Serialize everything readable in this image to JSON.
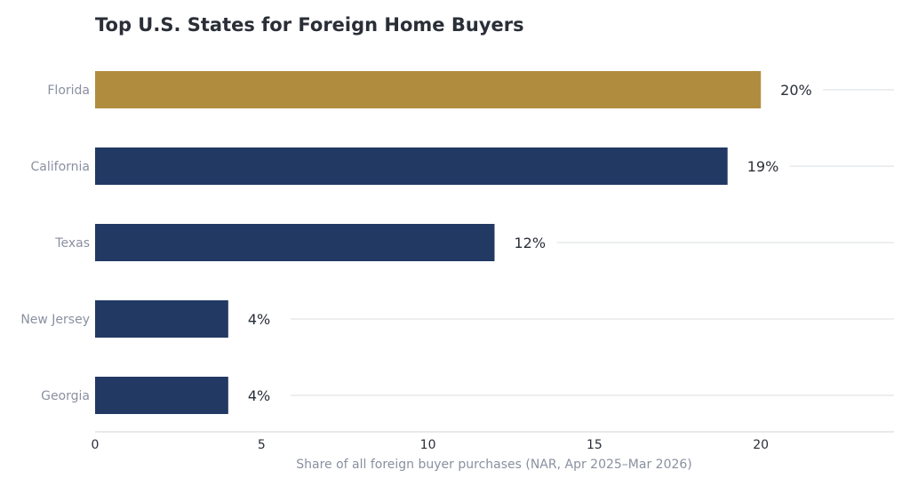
{
  "chart_data": {
    "type": "bar",
    "orientation": "horizontal",
    "title": "Top U.S. States for Foreign Home Buyers",
    "xlabel": "Share of all foreign buyer purchases (NAR, Apr 2025–Mar 2026)",
    "ylabel": "",
    "categories": [
      "Florida",
      "California",
      "Texas",
      "New Jersey",
      "Georgia"
    ],
    "values": [
      20,
      19,
      12,
      4,
      4
    ],
    "value_labels": [
      "20%",
      "19%",
      "12%",
      "4%",
      "4%"
    ],
    "xlim": [
      0,
      24
    ],
    "xticks": [
      0,
      5,
      10,
      15,
      20
    ],
    "xtick_labels": [
      "0",
      "5",
      "10",
      "15",
      "20"
    ],
    "grid": "horizontal lines at category rows",
    "colors": {
      "highlight": "#b08c3f",
      "default": "#213963",
      "grid": "#d9dce1",
      "axis": "#cfd3d9"
    },
    "highlight_category": "Florida"
  }
}
